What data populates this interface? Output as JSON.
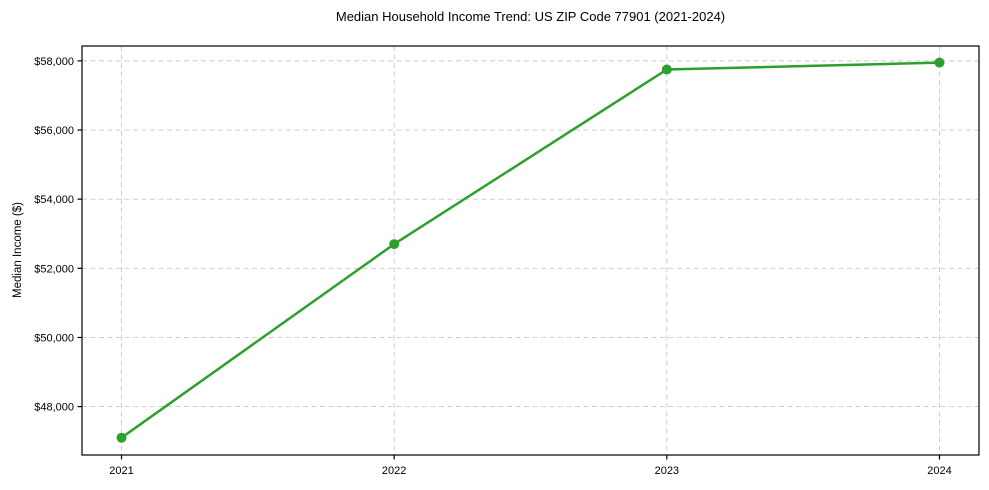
{
  "chart_data": {
    "type": "line",
    "title": "Median Household Income Trend: US ZIP Code 77901 (2021-2024)",
    "xlabel": "",
    "ylabel": "Median Income ($)",
    "x": [
      2021,
      2022,
      2023,
      2024
    ],
    "series": [
      {
        "name": "Median Household Income",
        "values": [
          47100,
          52700,
          57750,
          57950
        ]
      }
    ],
    "xticks": [
      2021,
      2022,
      2023,
      2024
    ],
    "xtick_labels": [
      "2021",
      "2022",
      "2023",
      "2024"
    ],
    "yticks": [
      48000,
      50000,
      52000,
      54000,
      56000,
      58000
    ],
    "ytick_labels": [
      "$48,000",
      "$50,000",
      "$52,000",
      "$54,000",
      "$56,000",
      "$58,000"
    ],
    "xlim": [
      2020.855,
      2024.145
    ],
    "ylim": [
      46600,
      58430
    ],
    "grid": true,
    "grid_style": "dashed",
    "legend": "none",
    "line_color": "#2ca02c",
    "marker": "circle",
    "marker_radius": 5,
    "line_width": 2.5,
    "grid_color": "#c9c9c9",
    "axes_color": "#000000",
    "background_color": "#ffffff"
  }
}
